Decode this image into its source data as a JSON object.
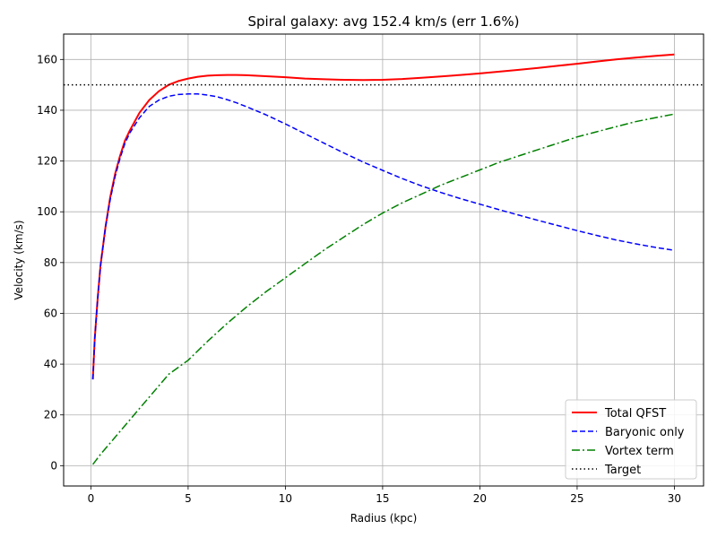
{
  "chart_data": {
    "type": "line",
    "title": "Spiral galaxy: avg 152.4 km/s (err 1.6%)",
    "xlabel": "Radius (kpc)",
    "ylabel": "Velocity (km/s)",
    "xlim": [
      -1.4,
      31.5
    ],
    "ylim": [
      -8,
      170
    ],
    "xticks": [
      0,
      5,
      10,
      15,
      20,
      25,
      30
    ],
    "yticks": [
      0,
      20,
      40,
      60,
      80,
      100,
      120,
      140,
      160
    ],
    "grid": true,
    "legend_position": "lower-right",
    "series": [
      {
        "name": "Total QFST",
        "color": "#ff0000",
        "style": "solid",
        "x": [
          0.1,
          0.2,
          0.35,
          0.5,
          0.75,
          1.0,
          1.25,
          1.5,
          1.75,
          2.0,
          2.5,
          3.0,
          3.5,
          4.0,
          4.5,
          5.0,
          5.5,
          6.0,
          6.5,
          7.0,
          7.5,
          8.0,
          9.0,
          10.0,
          11.0,
          12.0,
          13.0,
          14.0,
          15.0,
          16.0,
          17.0,
          18.0,
          19.0,
          20.0,
          21.0,
          22.0,
          23.0,
          24.0,
          25.0,
          26.0,
          27.0,
          28.0,
          29.0,
          30.0
        ],
        "y": [
          34,
          50,
          66,
          79,
          94,
          106,
          115,
          122,
          128,
          132,
          139,
          144,
          147.5,
          150,
          151.5,
          152.5,
          153.2,
          153.6,
          153.8,
          153.9,
          153.9,
          153.8,
          153.4,
          153.0,
          152.5,
          152.2,
          152.0,
          151.9,
          152.0,
          152.3,
          152.8,
          153.3,
          153.9,
          154.5,
          155.2,
          155.9,
          156.7,
          157.5,
          158.3,
          159.2,
          160.0,
          160.7,
          161.4,
          162.0
        ]
      },
      {
        "name": "Baryonic only",
        "color": "#0000ff",
        "style": "dashed",
        "x": [
          0.1,
          0.2,
          0.35,
          0.5,
          0.75,
          1.0,
          1.25,
          1.5,
          1.75,
          2.0,
          2.5,
          3.0,
          3.5,
          4.0,
          4.5,
          5.0,
          5.5,
          6.0,
          6.5,
          7.0,
          7.5,
          8.0,
          9.0,
          10.0,
          11.0,
          12.0,
          13.0,
          14.0,
          15.0,
          16.0,
          17.0,
          18.0,
          19.0,
          20.0,
          21.0,
          22.0,
          23.0,
          24.0,
          25.0,
          26.0,
          27.0,
          28.0,
          29.0,
          30.0
        ],
        "y": [
          34,
          50,
          66,
          79,
          94,
          105,
          114,
          121,
          127,
          131,
          137,
          141.5,
          144,
          145.5,
          146.2,
          146.4,
          146.4,
          146.0,
          145.3,
          144.2,
          142.9,
          141.4,
          138.2,
          134.6,
          130.8,
          127.0,
          123.2,
          119.6,
          116.3,
          113.1,
          110.2,
          107.6,
          105.2,
          103.0,
          100.8,
          98.7,
          96.6,
          94.6,
          92.6,
          90.7,
          88.9,
          87.4,
          86.0,
          84.8
        ]
      },
      {
        "name": "Vortex term",
        "color": "#008000",
        "style": "dashdot",
        "x": [
          0.1,
          0.3,
          0.5,
          1.0,
          1.5,
          2.0,
          2.5,
          3.0,
          3.5,
          4.0,
          5.0,
          6.0,
          7.0,
          8.0,
          9.0,
          10.0,
          11.0,
          12.0,
          13.0,
          14.0,
          15.0,
          16.0,
          17.0,
          18.0,
          19.0,
          20.0,
          21.0,
          22.0,
          23.0,
          24.0,
          25.0,
          26.0,
          27.0,
          28.0,
          29.0,
          30.0
        ],
        "y": [
          0.5,
          2.5,
          4.5,
          9,
          13.5,
          18,
          22.5,
          27,
          31.5,
          36,
          41.5,
          49,
          56,
          62.5,
          68.5,
          74,
          79.5,
          85,
          90,
          95,
          99.5,
          103.5,
          107,
          110.5,
          113.5,
          116.5,
          119.5,
          122,
          124.5,
          127,
          129.5,
          131.5,
          133.5,
          135.5,
          137,
          138.5
        ]
      },
      {
        "name": "Target",
        "color": "#000000",
        "style": "dotted",
        "hline": 150
      }
    ]
  }
}
